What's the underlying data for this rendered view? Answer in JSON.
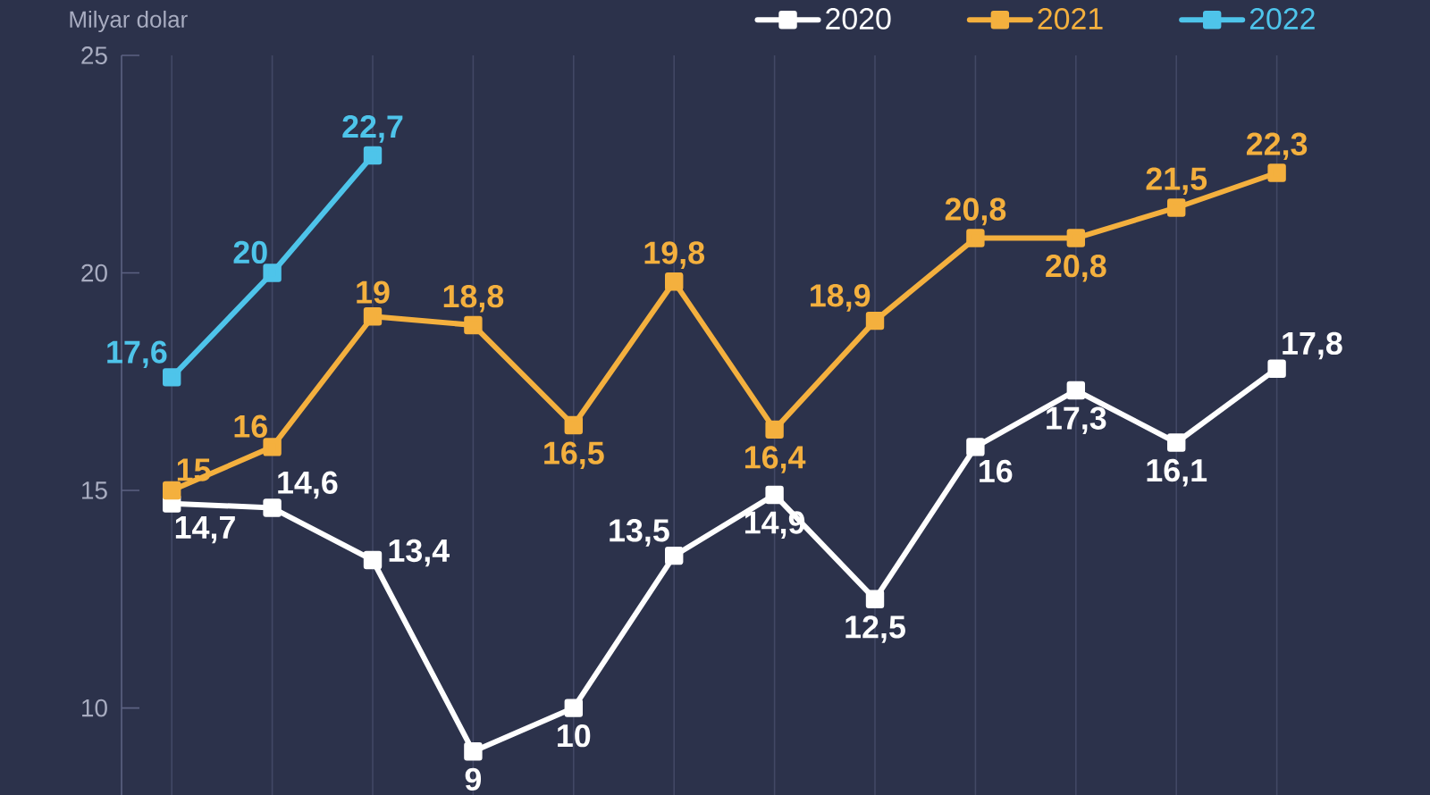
{
  "chart_data": {
    "type": "line",
    "ylabel": "Milyar dolar",
    "categories": [
      null,
      null,
      null,
      null,
      null,
      null,
      null,
      null,
      null,
      null,
      null,
      null
    ],
    "series": [
      {
        "name": "2020",
        "color": "#ffffff",
        "values": [
          14.7,
          14.6,
          13.4,
          9,
          10,
          13.5,
          14.9,
          12.5,
          16,
          17.3,
          16.1,
          17.8
        ],
        "value_labels": [
          "14,7",
          "14,6",
          "13,4",
          "9",
          "10",
          "13,5",
          "14,9",
          "12,5",
          "16",
          "17,3",
          "16,1",
          "17,8"
        ]
      },
      {
        "name": "2021",
        "color": "#f4b03e",
        "values": [
          15,
          16,
          19,
          18.8,
          16.5,
          19.8,
          16.4,
          18.9,
          20.8,
          20.8,
          21.5,
          22.3
        ],
        "value_labels": [
          "15",
          "16",
          "19",
          "18,8",
          "16,5",
          "19,8",
          "16,4",
          "18,9",
          "20,8",
          "20,8",
          "21,5",
          "22,3"
        ]
      },
      {
        "name": "2022",
        "color": "#4ec4ea",
        "values": [
          17.6,
          20,
          22.7,
          null,
          null,
          null,
          null,
          null,
          null,
          null,
          null,
          null
        ],
        "value_labels": [
          "17,6",
          "20",
          "22,7",
          null,
          null,
          null,
          null,
          null,
          null,
          null,
          null,
          null
        ]
      }
    ],
    "ylim": [
      8,
      25
    ],
    "yticks": [
      10,
      15,
      20,
      25
    ],
    "grid": "x",
    "legend": "top right",
    "marker": "square",
    "line_style": "solid"
  }
}
